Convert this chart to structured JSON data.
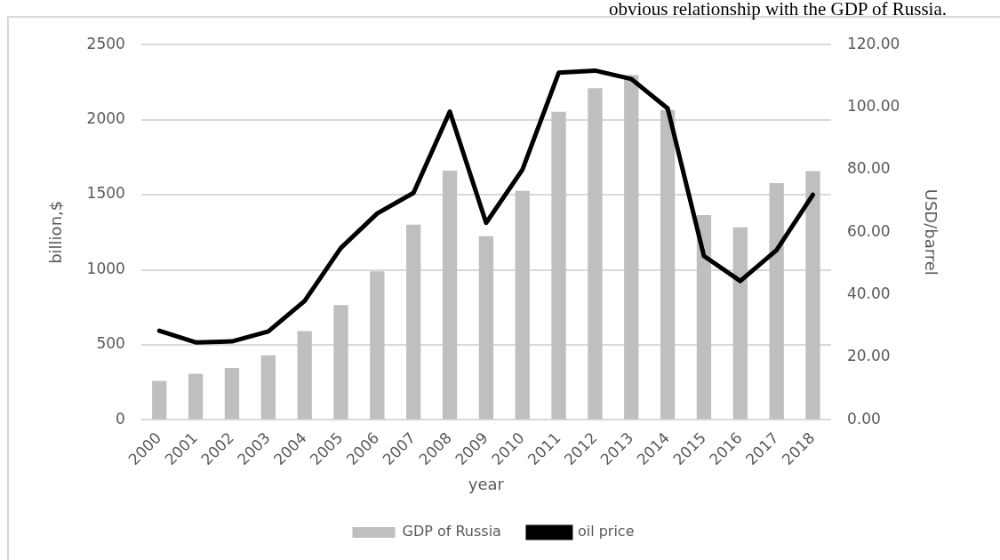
{
  "chart_data": {
    "type": "bar",
    "xlabel": "year",
    "ylabel": "billion,$",
    "y2label": "USD/barrel",
    "annotations": [
      "obvious relationship with the GDP of Russia."
    ],
    "categories": [
      "2000",
      "2001",
      "2002",
      "2003",
      "2004",
      "2005",
      "2006",
      "2007",
      "2008",
      "2009",
      "2010",
      "2011",
      "2012",
      "2013",
      "2014",
      "2015",
      "2016",
      "2017",
      "2018"
    ],
    "series": [
      {
        "name": "GDP of Russia",
        "color": "#bfbfbf",
        "values": [
          260,
          307,
          345,
          430,
          591,
          764,
          990,
          1300,
          1661,
          1223,
          1525,
          2052,
          2210,
          2297,
          2064,
          1364,
          1283,
          1578,
          1657
        ]
      },
      {
        "name": "oil price",
        "type": "line",
        "axis": "y2",
        "color": "#000000",
        "values": [
          28.5,
          24.8,
          25.1,
          28.3,
          38,
          55,
          66,
          72.6,
          98.6,
          63,
          80,
          111,
          111.7,
          109,
          99.6,
          52.4,
          44.4,
          54.3,
          72
        ]
      }
    ],
    "ylim": [
      0,
      2500
    ],
    "yticks": [
      0,
      500,
      1000,
      1500,
      2000,
      2500
    ],
    "y2lim": [
      0,
      120
    ],
    "y2ticks": [
      {
        "value": 0,
        "label": "0.00"
      },
      {
        "value": 20,
        "label": "20.00"
      },
      {
        "value": 40,
        "label": "40.00"
      },
      {
        "value": 60,
        "label": "60.00"
      },
      {
        "value": 80,
        "label": "80.00"
      },
      {
        "value": 100,
        "label": "100.00"
      },
      {
        "value": 120,
        "label": "120.00"
      }
    ],
    "grid": "y",
    "legend": "bottom",
    "marker": "none",
    "line_style": "solid"
  }
}
